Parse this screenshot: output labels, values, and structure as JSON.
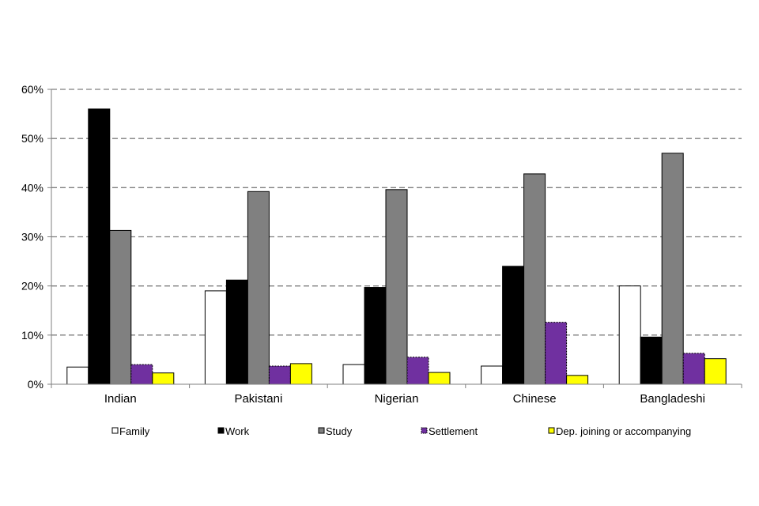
{
  "chart_data": {
    "type": "bar",
    "title": "",
    "xlabel": "",
    "ylabel": "",
    "ylim": [
      0,
      60
    ],
    "yticks": [
      "0%",
      "10%",
      "20%",
      "30%",
      "40%",
      "50%",
      "60%"
    ],
    "grid": true,
    "legend_position": "bottom",
    "categories": [
      "Indian",
      "Pakistani",
      "Nigerian",
      "Chinese",
      "Bangladeshi"
    ],
    "series": [
      {
        "name": "Family",
        "color": "#ffffff",
        "values": [
          3.5,
          19,
          4,
          3.7,
          20
        ]
      },
      {
        "name": "Work",
        "color": "#000000",
        "values": [
          56,
          21.2,
          19.7,
          24,
          9.6
        ]
      },
      {
        "name": "Study",
        "color": "#808080",
        "values": [
          31.3,
          39.2,
          39.6,
          42.8,
          47
        ]
      },
      {
        "name": "Settlement",
        "color": "#7030a0",
        "values": [
          4,
          3.7,
          5.5,
          12.6,
          6.3
        ]
      },
      {
        "name": "Dep. joining or accompanying",
        "color": "#ffff00",
        "values": [
          2.3,
          4.2,
          2.4,
          1.8,
          5.2
        ]
      }
    ]
  }
}
